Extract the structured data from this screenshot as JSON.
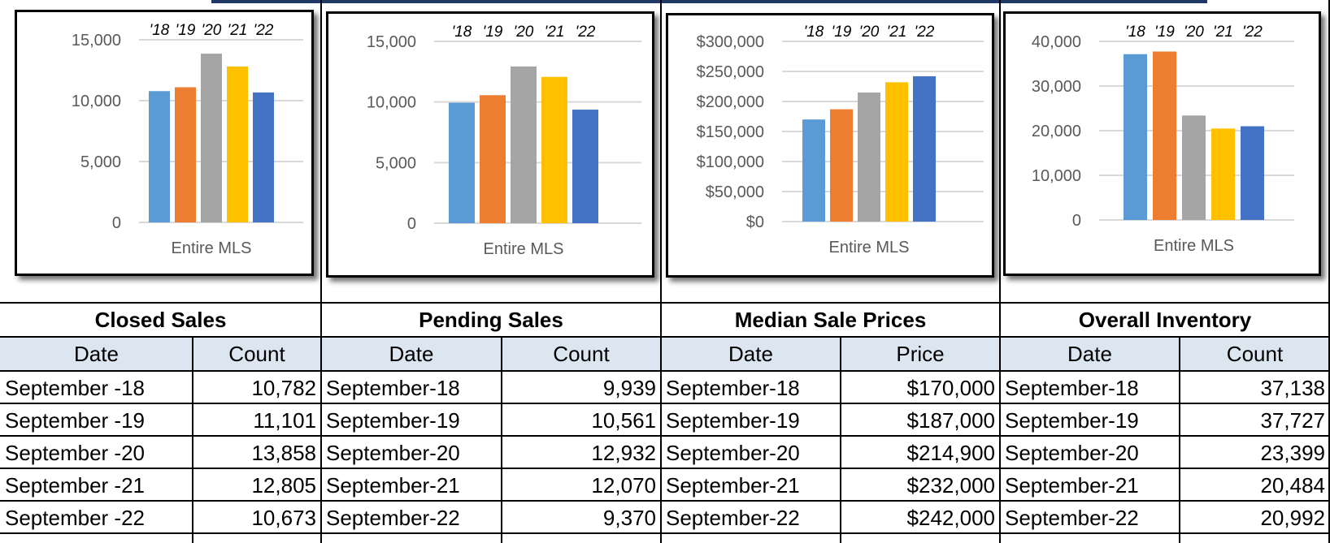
{
  "colors": {
    "series": [
      "#5b9bd5",
      "#ed7d31",
      "#a5a5a5",
      "#ffc000",
      "#4472c4"
    ],
    "header_bg": "#dce6f1",
    "grid": "#d9d9d9"
  },
  "chart_data": [
    {
      "type": "bar",
      "title": "",
      "xlabel": "Entire MLS",
      "categories": [
        "Entire MLS"
      ],
      "series": [
        {
          "name": "'18",
          "values": [
            10782
          ]
        },
        {
          "name": "'19",
          "values": [
            11101
          ]
        },
        {
          "name": "'20",
          "values": [
            13858
          ]
        },
        {
          "name": "'21",
          "values": [
            12805
          ]
        },
        {
          "name": "'22",
          "values": [
            10673
          ]
        }
      ],
      "ylim": [
        0,
        15000
      ],
      "yticks": [
        "0",
        "5,000",
        "10,000",
        "15,000"
      ],
      "grid": true,
      "legend": "top"
    },
    {
      "type": "bar",
      "title": "",
      "xlabel": "Entire MLS",
      "categories": [
        "Entire MLS"
      ],
      "series": [
        {
          "name": "'18",
          "values": [
            9939
          ]
        },
        {
          "name": "'19",
          "values": [
            10561
          ]
        },
        {
          "name": "'20",
          "values": [
            12932
          ]
        },
        {
          "name": "'21",
          "values": [
            12070
          ]
        },
        {
          "name": "'22",
          "values": [
            9370
          ]
        }
      ],
      "ylim": [
        0,
        15000
      ],
      "yticks": [
        "0",
        "5,000",
        "10,000",
        "15,000"
      ],
      "grid": true,
      "legend": "top"
    },
    {
      "type": "bar",
      "title": "",
      "xlabel": "Entire MLS",
      "categories": [
        "Entire MLS"
      ],
      "series": [
        {
          "name": "'18",
          "values": [
            170000
          ]
        },
        {
          "name": "'19",
          "values": [
            187000
          ]
        },
        {
          "name": "'20",
          "values": [
            214900
          ]
        },
        {
          "name": "'21",
          "values": [
            232000
          ]
        },
        {
          "name": "'22",
          "values": [
            242000
          ]
        }
      ],
      "ylim": [
        0,
        300000
      ],
      "yticks": [
        "$0",
        "$50,000",
        "$100,000",
        "$150,000",
        "$200,000",
        "$250,000",
        "$300,000"
      ],
      "grid": true,
      "legend": "top"
    },
    {
      "type": "bar",
      "title": "",
      "xlabel": "Entire MLS",
      "categories": [
        "Entire MLS"
      ],
      "series": [
        {
          "name": "'18",
          "values": [
            37138
          ]
        },
        {
          "name": "'19",
          "values": [
            37727
          ]
        },
        {
          "name": "'20",
          "values": [
            23399
          ]
        },
        {
          "name": "'21",
          "values": [
            20484
          ]
        },
        {
          "name": "'22",
          "values": [
            20992
          ]
        }
      ],
      "ylim": [
        0,
        40000
      ],
      "yticks": [
        "0",
        "10,000",
        "20,000",
        "30,000",
        "40,000"
      ],
      "grid": true,
      "legend": "top"
    }
  ],
  "tables": [
    {
      "title": "Closed Sales",
      "col1": "Date",
      "col2": "Count",
      "rows": [
        [
          "September -18",
          "10,782"
        ],
        [
          "September -19",
          "11,101"
        ],
        [
          "September -20",
          "13,858"
        ],
        [
          "September -21",
          "12,805"
        ],
        [
          "September -22",
          "10,673"
        ]
      ]
    },
    {
      "title": "Pending Sales",
      "col1": "Date",
      "col2": "Count",
      "rows": [
        [
          "September-18",
          "9,939"
        ],
        [
          "September-19",
          "10,561"
        ],
        [
          "September-20",
          "12,932"
        ],
        [
          "September-21",
          "12,070"
        ],
        [
          "September-22",
          "9,370"
        ]
      ]
    },
    {
      "title": "Median Sale Prices",
      "col1": "Date",
      "col2": "Price",
      "rows": [
        [
          "September-18",
          "$170,000"
        ],
        [
          "September-19",
          "$187,000"
        ],
        [
          "September-20",
          "$214,900"
        ],
        [
          "September-21",
          "$232,000"
        ],
        [
          "September-22",
          "$242,000"
        ]
      ]
    },
    {
      "title": "Overall Inventory",
      "col1": "Date",
      "col2": "Count",
      "rows": [
        [
          "September-18",
          "37,138"
        ],
        [
          "September-19",
          "37,727"
        ],
        [
          "September-20",
          "23,399"
        ],
        [
          "September-21",
          "20,484"
        ],
        [
          "September-22",
          "20,992"
        ]
      ]
    }
  ]
}
